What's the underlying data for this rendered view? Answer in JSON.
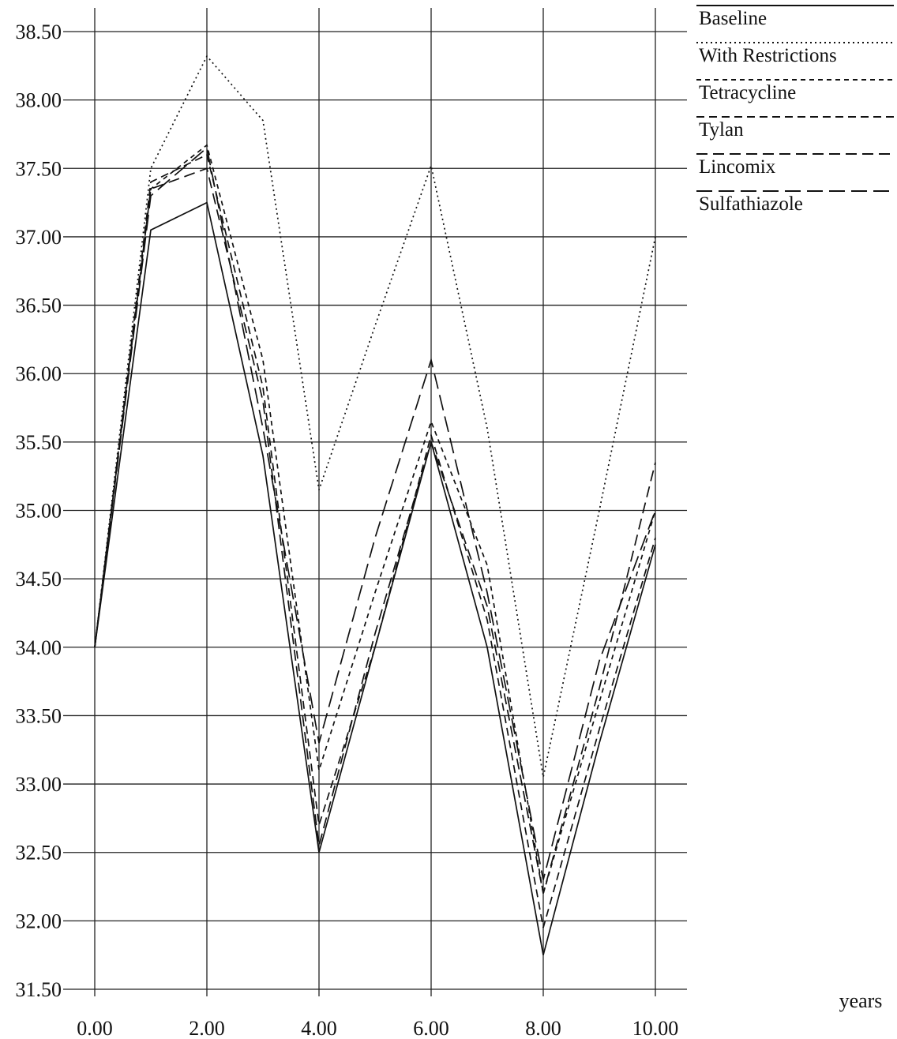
{
  "chart_data": {
    "type": "line",
    "xlabel": "years",
    "ylabel": "",
    "xlim": [
      0,
      10
    ],
    "ylim": [
      31.5,
      38.5
    ],
    "x_ticks": [
      "0.00",
      "2.00",
      "4.00",
      "6.00",
      "8.00",
      "10.00"
    ],
    "y_ticks": [
      "38.50",
      "38.00",
      "37.50",
      "37.00",
      "36.50",
      "36.00",
      "35.50",
      "35.00",
      "34.50",
      "34.00",
      "33.50",
      "33.00",
      "32.50",
      "32.00",
      "31.50"
    ],
    "grid": true,
    "legend_position": "top-right",
    "x": [
      0,
      1,
      2,
      3,
      4,
      5,
      6,
      7,
      8,
      9,
      10
    ],
    "series": [
      {
        "name": "Baseline",
        "dash": "solid",
        "values": [
          34.0,
          37.05,
          37.25,
          35.4,
          32.5,
          34.0,
          35.5,
          34.0,
          31.75,
          33.3,
          34.75
        ]
      },
      {
        "name": "With Restrictions",
        "dash": "dotted",
        "values": [
          34.0,
          37.5,
          38.32,
          37.85,
          35.15,
          36.35,
          37.52,
          35.6,
          33.05,
          35.0,
          37.0
        ]
      },
      {
        "name": "Tetracycline",
        "dash": "dash-short",
        "values": [
          34.0,
          37.35,
          37.67,
          36.1,
          33.1,
          34.4,
          35.65,
          34.6,
          32.2,
          33.6,
          35.0
        ]
      },
      {
        "name": "Tylan",
        "dash": "dash-medium",
        "values": [
          34.0,
          37.4,
          37.6,
          35.9,
          32.7,
          34.0,
          35.55,
          34.2,
          31.95,
          33.4,
          34.8
        ]
      },
      {
        "name": "Lincomix",
        "dash": "dash-long",
        "values": [
          34.0,
          37.35,
          37.5,
          35.8,
          32.55,
          34.1,
          35.5,
          34.3,
          32.2,
          33.7,
          35.35
        ]
      },
      {
        "name": "Sulfathiazole",
        "dash": "dash-xlong",
        "values": [
          34.0,
          37.3,
          37.65,
          35.6,
          33.3,
          34.8,
          36.1,
          34.4,
          32.3,
          33.9,
          35.0
        ]
      }
    ]
  }
}
